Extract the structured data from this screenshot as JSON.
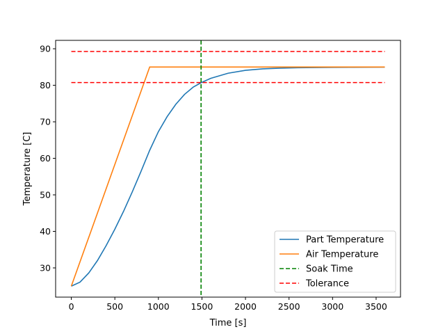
{
  "chart_data": {
    "type": "line",
    "title": "",
    "xlabel": "Time [s]",
    "ylabel": "Temperature [C]",
    "xlim": [
      -180,
      3780
    ],
    "ylim": [
      22.0,
      92.3
    ],
    "xticks": [
      0,
      500,
      1000,
      1500,
      2000,
      2500,
      3000,
      3500
    ],
    "yticks": [
      30,
      40,
      50,
      60,
      70,
      80,
      90
    ],
    "grid": false,
    "legend_position": "lower-right",
    "series": [
      {
        "name": "Part Temperature",
        "style": "solid",
        "color": "#1f77b4",
        "x": [
          0,
          100,
          200,
          300,
          400,
          500,
          600,
          700,
          800,
          900,
          1000,
          1100,
          1200,
          1300,
          1400,
          1490,
          1600,
          1800,
          2000,
          2200,
          2400,
          2600,
          2800,
          3000,
          3200,
          3400,
          3600
        ],
        "y": [
          25.0,
          26.1,
          28.6,
          32.0,
          36.1,
          40.6,
          45.5,
          50.8,
          56.4,
          62.2,
          67.3,
          71.4,
          74.8,
          77.5,
          79.5,
          80.7,
          81.9,
          83.3,
          84.1,
          84.5,
          84.7,
          84.8,
          84.85,
          84.9,
          84.93,
          84.95,
          84.97
        ]
      },
      {
        "name": "Air Temperature",
        "style": "solid",
        "color": "#ff7f0e",
        "x": [
          0,
          900,
          3600
        ],
        "y": [
          25.0,
          85.0,
          85.0
        ]
      },
      {
        "name": "Soak Time",
        "style": "dashed",
        "color": "#008000",
        "orientation": "vertical",
        "x": 1490
      },
      {
        "name": "Tolerance",
        "style": "dashed",
        "color": "#ff0000",
        "orientation": "horizontal",
        "x": [
          0,
          3600
        ],
        "y_values": [
          89.25,
          80.75
        ]
      }
    ]
  }
}
